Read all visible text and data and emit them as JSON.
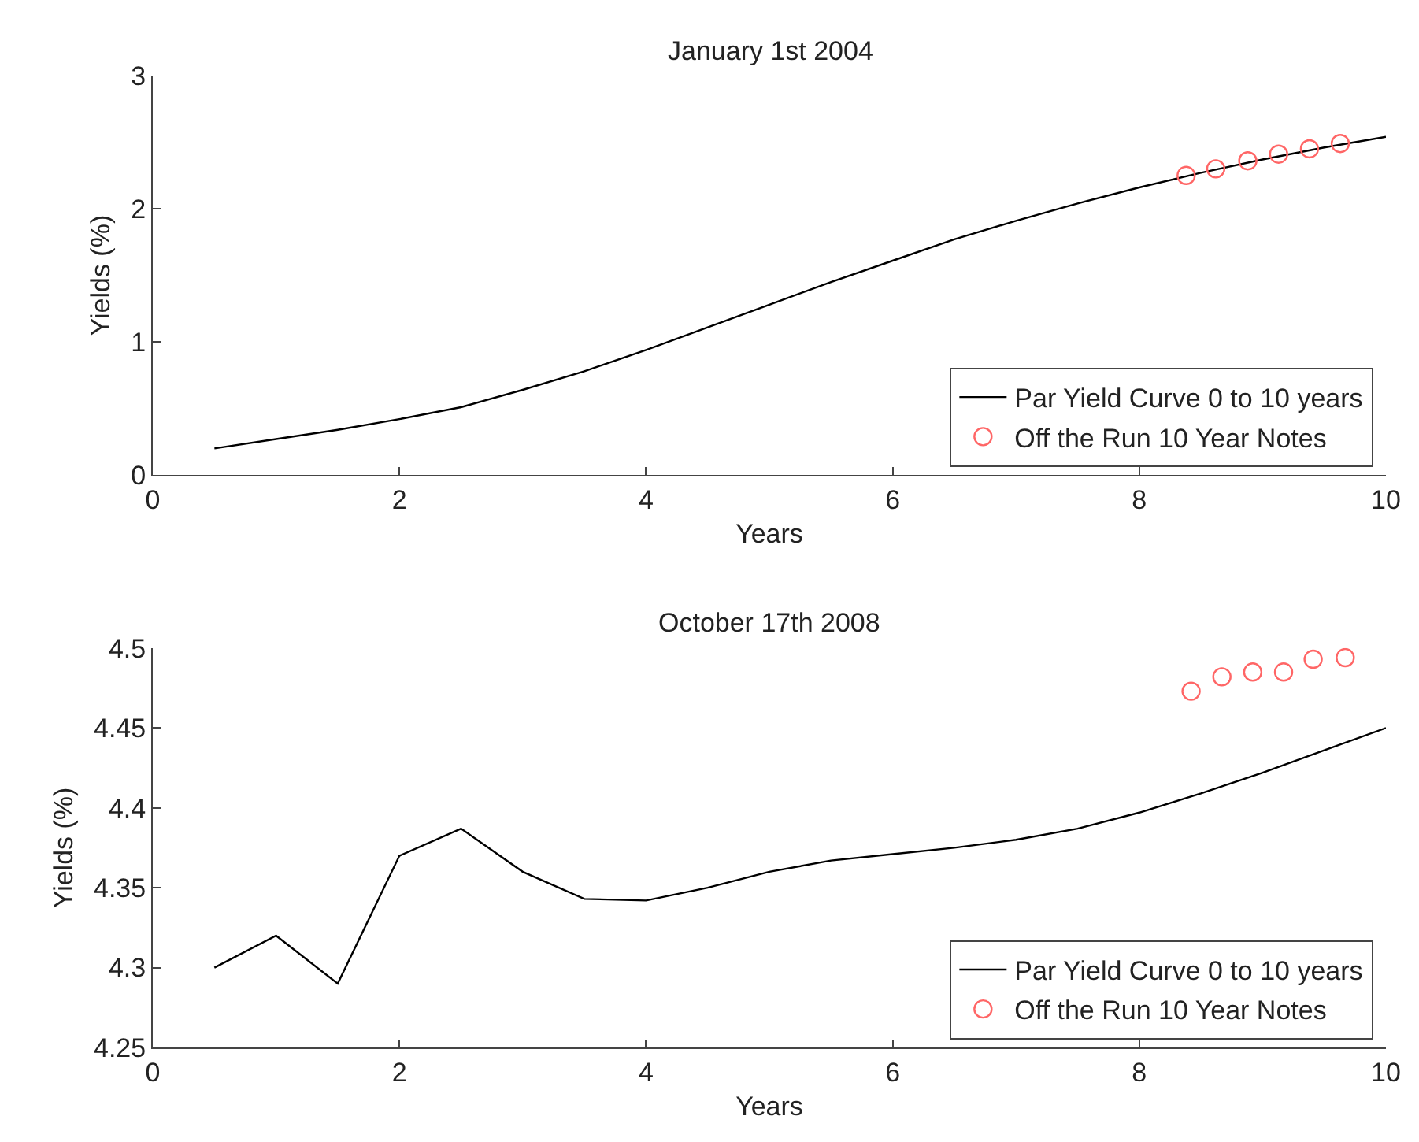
{
  "chart_data": [
    {
      "type": "line",
      "title": "January 1st 2004",
      "xlabel": "Years",
      "ylabel": "Yields (%)",
      "xlim": [
        0,
        10
      ],
      "xticks": [
        0,
        2,
        4,
        6,
        8,
        10
      ],
      "ylim": [
        0,
        3
      ],
      "yticks": [
        0,
        1,
        2,
        3
      ],
      "legend": "bottom right",
      "series": [
        {
          "name": "Par Yield Curve 0 to 10 years",
          "color": "#000000",
          "line_style": "solid",
          "x": [
            0.5,
            1,
            1.5,
            2,
            2.5,
            3,
            3.5,
            4,
            4.5,
            5,
            5.5,
            6,
            6.5,
            7,
            7.5,
            8,
            8.5,
            9,
            9.5,
            10
          ],
          "values": [
            0.2,
            0.27,
            0.34,
            0.42,
            0.51,
            0.64,
            0.78,
            0.94,
            1.11,
            1.28,
            1.45,
            1.61,
            1.77,
            1.91,
            2.04,
            2.16,
            2.27,
            2.37,
            2.46,
            2.54
          ]
        },
        {
          "name": "Off the Run 10 Year Notes",
          "type": "scatter",
          "marker": "circle",
          "color": "#ff6666",
          "x": [
            8.38,
            8.62,
            8.88,
            9.13,
            9.38,
            9.63
          ],
          "values": [
            2.25,
            2.3,
            2.36,
            2.41,
            2.45,
            2.49
          ]
        }
      ]
    },
    {
      "type": "line",
      "title": "October 17th 2008",
      "xlabel": "Years",
      "ylabel": "Yields (%)",
      "xlim": [
        0,
        10
      ],
      "xticks": [
        0,
        2,
        4,
        6,
        8,
        10
      ],
      "ylim": [
        4.25,
        4.5
      ],
      "yticks": [
        4.25,
        4.3,
        4.35,
        4.4,
        4.45,
        4.5
      ],
      "legend": "bottom right",
      "series": [
        {
          "name": "Par Yield Curve 0 to 10 years",
          "color": "#000000",
          "line_style": "solid",
          "x": [
            0.5,
            1,
            1.5,
            2,
            2.5,
            3,
            3.5,
            4,
            4.5,
            5,
            5.5,
            6,
            6.5,
            7,
            7.5,
            8,
            8.5,
            9,
            9.5,
            10
          ],
          "values": [
            4.3,
            4.32,
            4.29,
            4.37,
            4.387,
            4.36,
            4.343,
            4.342,
            4.35,
            4.36,
            4.367,
            4.371,
            4.375,
            4.38,
            4.387,
            4.397,
            4.409,
            4.422,
            4.436,
            4.45
          ]
        },
        {
          "name": "Off the Run 10 Year Notes",
          "type": "scatter",
          "marker": "circle",
          "color": "#ff6666",
          "x": [
            8.42,
            8.67,
            8.92,
            9.17,
            9.41,
            9.67
          ],
          "values": [
            4.473,
            4.482,
            4.485,
            4.485,
            4.493,
            4.494
          ]
        }
      ]
    }
  ]
}
